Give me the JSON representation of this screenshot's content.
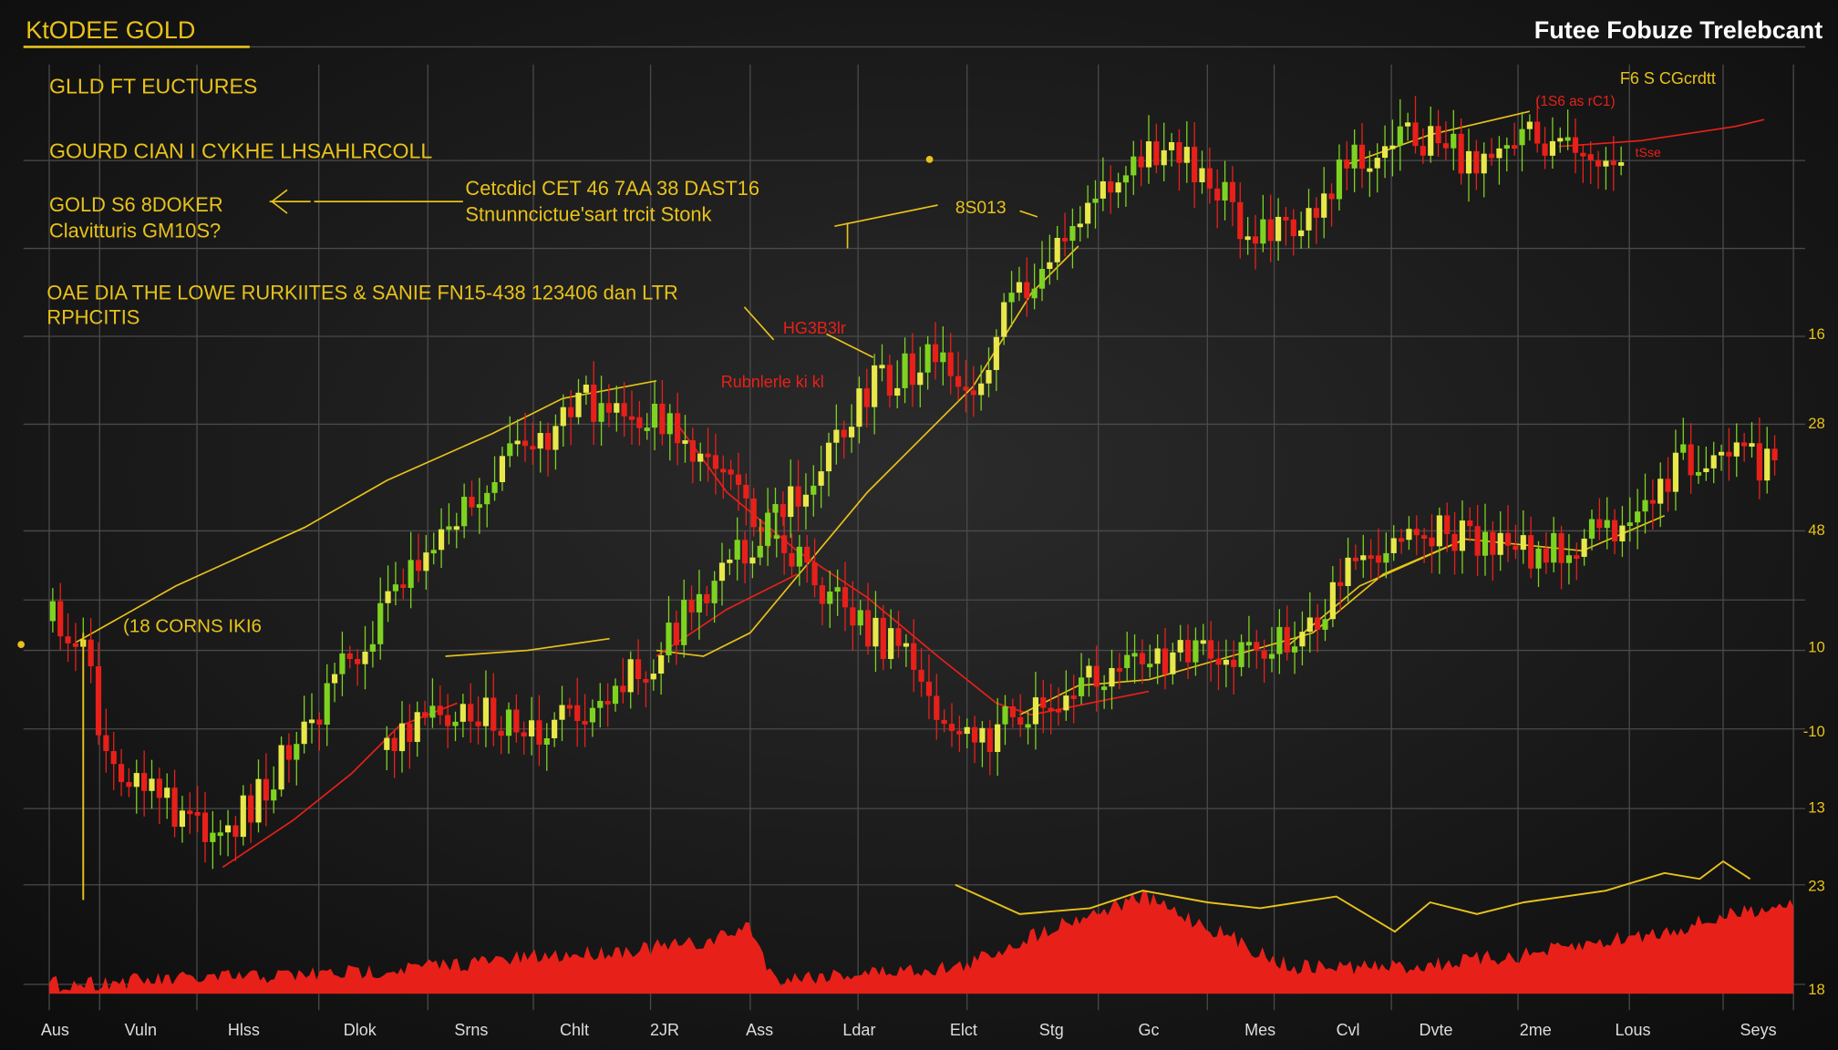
{
  "header": {
    "title": "KtODEE GOLD",
    "brand": "Futee Fobuze Trelebcant"
  },
  "notes": {
    "heading": "GLLD FT EUCTURES",
    "line1": "GOURD CIAN I CYKHE LHSAHLRCOLL",
    "line2": "GOLD S6 8DOKER",
    "line3": "Clavitturis GM10S?",
    "callout1": "Cetcdicl CET 46 7AA 38 DAST16",
    "callout2": "Stnunncictue'sart trcit Stonk",
    "callout3": "8S013",
    "banner1": "OAE DIA THE LOWE RURKIITES & SANIE FN15-438 123406 dan LTR",
    "banner2": "RPHCITIS",
    "red1": "HG3B3lr",
    "red2": "Rubnlerle ki kl",
    "left": "(18 CORNS IKI6",
    "corner": "F6 S CGcrdtt",
    "corner_red": "(1S6 as rC1)",
    "small_red": "tSse"
  },
  "axis": {
    "y_labels": [
      "16",
      "28",
      "48",
      "10",
      "-10",
      "13",
      "23",
      "18"
    ],
    "x_labels": [
      "Aus",
      "Vuln",
      "Hlss",
      "Dlok",
      "Srns",
      "Chlt",
      "2JR",
      "Ass",
      "Ldar",
      "Elct",
      "Stg",
      "Gc",
      "Mes",
      "Cvl",
      "Dvte",
      "2me",
      "Lous",
      "Seys"
    ]
  }
}
